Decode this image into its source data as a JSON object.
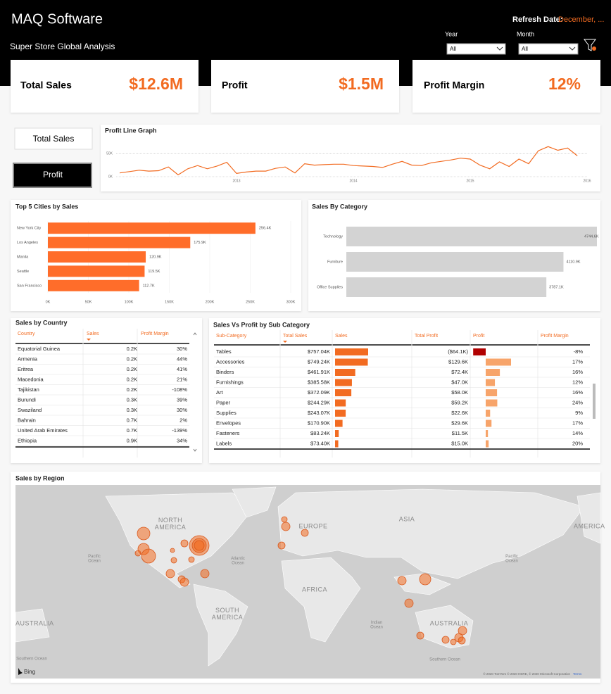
{
  "header": {
    "brand": "MAQ Software",
    "subtitle": "Super Store Global Analysis",
    "refresh_label": "Refresh Date:",
    "refresh_value": "December, ...",
    "filters": [
      {
        "label": "Year",
        "value": "All"
      },
      {
        "label": "Month",
        "value": "All"
      }
    ]
  },
  "kpis": [
    {
      "label": "Total Sales",
      "value": "$12.6M"
    },
    {
      "label": "Profit",
      "value": "$1.5M"
    },
    {
      "label": "Profit Margin",
      "value": "12%"
    }
  ],
  "toggles": [
    "Total Sales",
    "Profit"
  ],
  "profit_line": {
    "type": "line",
    "title": "Profit Line Graph",
    "color": "#f26b21",
    "values": [
      8000,
      11000,
      14000,
      12000,
      13000,
      21000,
      4000,
      17000,
      24000,
      17000,
      23000,
      31000,
      7000,
      10000,
      12000,
      12000,
      18000,
      21000,
      8000,
      28000,
      25000,
      26000,
      27000,
      27000,
      24000,
      23000,
      22000,
      20000,
      27000,
      33000,
      25000,
      24000,
      30000,
      33000,
      36000,
      40000,
      38000,
      25000,
      17000,
      32000,
      22000,
      38000,
      28000,
      56000,
      65000,
      57000,
      62000,
      45000
    ],
    "xlim": [
      2012,
      2016
    ],
    "xticks": [
      2013,
      2014,
      2015,
      2016
    ],
    "ylim": [
      0,
      70000
    ],
    "yticks": [
      {
        "value": 0,
        "label": "0K"
      },
      {
        "value": 50000,
        "label": "50K"
      }
    ],
    "grid": true
  },
  "top_cities": {
    "type": "bar",
    "title": "Top 5 Cities by Sales",
    "categories": [
      "New York City",
      "Los Angeles",
      "Manila",
      "Seattle",
      "San Francisco"
    ],
    "values": [
      256400,
      175900,
      120900,
      119500,
      112700
    ],
    "value_labels": [
      "256.4K",
      "175.9K",
      "120.9K",
      "119.5K",
      "112.7K"
    ],
    "color": "#ff6d2a",
    "xlim": [
      0,
      300000
    ],
    "xticks": [
      {
        "value": 0,
        "label": "0K"
      },
      {
        "value": 50000,
        "label": "50K"
      },
      {
        "value": 100000,
        "label": "100K"
      },
      {
        "value": 150000,
        "label": "150K"
      },
      {
        "value": 200000,
        "label": "200K"
      },
      {
        "value": 250000,
        "label": "250K"
      },
      {
        "value": 300000,
        "label": "300K"
      }
    ],
    "grid": true
  },
  "sales_by_category": {
    "type": "bar",
    "title": "Sales By Category",
    "categories": [
      "Technology",
      "Furniture",
      "Office Supplies"
    ],
    "values": [
      4744600,
      4110900,
      3787100
    ],
    "value_labels": [
      "4744.6K",
      "4110.9K",
      "3787.1K"
    ],
    "color": "#d3d3d3"
  },
  "country_table": {
    "title": "Sales by Country",
    "columns": [
      "Country",
      "Sales",
      "Profit Margin"
    ],
    "rows": [
      [
        "Equatorial Guinea",
        "0.2K",
        "30%"
      ],
      [
        "Armenia",
        "0.2K",
        "44%"
      ],
      [
        "Eritrea",
        "0.2K",
        "41%"
      ],
      [
        "Macedonia",
        "0.2K",
        "21%"
      ],
      [
        "Tajikistan",
        "0.2K",
        "-108%"
      ],
      [
        "Burundi",
        "0.3K",
        "39%"
      ],
      [
        "Swaziland",
        "0.3K",
        "30%"
      ],
      [
        "Bahrain",
        "0.7K",
        "2%"
      ],
      [
        "United Arab Emirates",
        "0.7K",
        "-139%"
      ],
      [
        "Ethiopia",
        "0.9K",
        "34%"
      ]
    ]
  },
  "subcategory_table": {
    "title": "Sales Vs Profit by Sub Category",
    "columns": [
      "Sub-Category",
      "Total Sales",
      "Sales",
      "Total Profit",
      "Profit",
      "Profit Margin"
    ],
    "sales_color": "#f26b21",
    "profit_color": "#f7a46a",
    "loss_color": "#b00000",
    "rows": [
      {
        "name": "Tables",
        "sales": 757040,
        "sales_label": "$757.04K",
        "profit": -64100,
        "profit_label": "($64.1K)",
        "margin": "-8%"
      },
      {
        "name": "Accessories",
        "sales": 749240,
        "sales_label": "$749.24K",
        "profit": 129600,
        "profit_label": "$129.6K",
        "margin": "17%"
      },
      {
        "name": "Binders",
        "sales": 461910,
        "sales_label": "$461.91K",
        "profit": 72400,
        "profit_label": "$72.4K",
        "margin": "16%"
      },
      {
        "name": "Furnishings",
        "sales": 385580,
        "sales_label": "$385.58K",
        "profit": 47000,
        "profit_label": "$47.0K",
        "margin": "12%"
      },
      {
        "name": "Art",
        "sales": 372090,
        "sales_label": "$372.09K",
        "profit": 58000,
        "profit_label": "$58.0K",
        "margin": "16%"
      },
      {
        "name": "Paper",
        "sales": 244290,
        "sales_label": "$244.29K",
        "profit": 59200,
        "profit_label": "$59.2K",
        "margin": "24%"
      },
      {
        "name": "Supplies",
        "sales": 243070,
        "sales_label": "$243.07K",
        "profit": 22600,
        "profit_label": "$22.6K",
        "margin": "9%"
      },
      {
        "name": "Envelopes",
        "sales": 170900,
        "sales_label": "$170.90K",
        "profit": 29600,
        "profit_label": "$29.6K",
        "margin": "17%"
      },
      {
        "name": "Fasteners",
        "sales": 83240,
        "sales_label": "$83.24K",
        "profit": 11500,
        "profit_label": "$11.5K",
        "margin": "14%"
      },
      {
        "name": "Labels",
        "sales": 73400,
        "sales_label": "$73.40K",
        "profit": 15000,
        "profit_label": "$15.0K",
        "margin": "20%"
      }
    ]
  },
  "map": {
    "title": "Sales by Region",
    "labels": [
      "NORTH AMERICA",
      "EUROPE",
      "ASIA",
      "AFRICA",
      "SOUTH AMERICA",
      "AUSTRALIA",
      "AUSTRALIA",
      "AMERICA",
      "Atlantic Ocean",
      "Pacific Ocean",
      "Pacific Ocean",
      "Indian Ocean",
      "Southern Ocean",
      "Southern Ocean"
    ],
    "logo": "Bing",
    "attribution": "© 2020 TomTom © 2020 HERE, © 2020 Microsoft Corporation",
    "terms": "Terms"
  }
}
